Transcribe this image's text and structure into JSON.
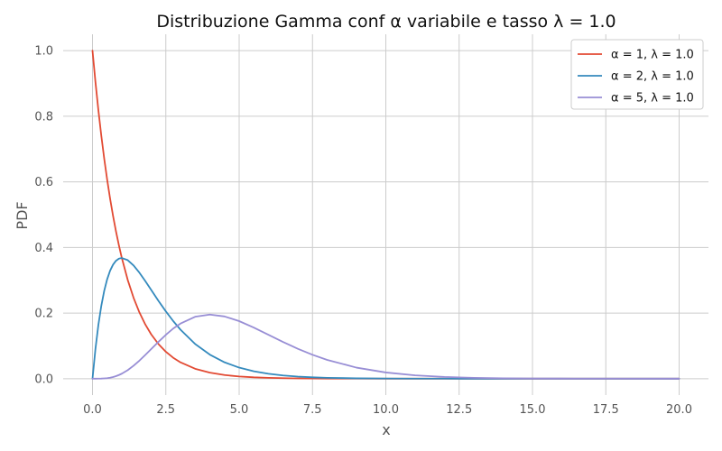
{
  "chart_data": {
    "type": "line",
    "title": "Distribuzione Gamma conf α variabile e tasso λ = 1.0",
    "xlabel": "x",
    "ylabel": "PDF",
    "xlim": [
      -1.0,
      21.0
    ],
    "ylim": [
      -0.05,
      1.05
    ],
    "x_ticks": [
      0.0,
      2.5,
      5.0,
      7.5,
      10.0,
      12.5,
      15.0,
      17.5,
      20.0
    ],
    "x_tick_labels": [
      "0.0",
      "2.5",
      "5.0",
      "7.5",
      "10.0",
      "12.5",
      "15.0",
      "17.5",
      "20.0"
    ],
    "y_ticks": [
      0.0,
      0.2,
      0.4,
      0.6,
      0.8,
      1.0
    ],
    "y_tick_labels": [
      "0.0",
      "0.2",
      "0.4",
      "0.6",
      "0.8",
      "1.0"
    ],
    "grid": true,
    "legend_position": "top-right",
    "x": [
      0,
      0.1,
      0.2,
      0.3,
      0.4,
      0.5,
      0.6,
      0.7,
      0.8,
      0.9,
      1.0,
      1.2,
      1.4,
      1.6,
      1.8,
      2.0,
      2.25,
      2.5,
      2.75,
      3.0,
      3.5,
      4.0,
      4.5,
      5.0,
      5.5,
      6.0,
      6.5,
      7.0,
      7.5,
      8.0,
      9.0,
      10.0,
      11.0,
      12.0,
      13.0,
      14.0,
      15.0,
      16.0,
      17.0,
      18.0,
      19.0,
      20.0
    ],
    "series": [
      {
        "name": "α = 1,  λ = 1.0",
        "color": "#E24A33",
        "values": [
          1.0,
          0.9048,
          0.8187,
          0.7408,
          0.6703,
          0.6065,
          0.5488,
          0.4966,
          0.4493,
          0.4066,
          0.3679,
          0.3012,
          0.2466,
          0.2019,
          0.1653,
          0.1353,
          0.1054,
          0.0821,
          0.0639,
          0.0498,
          0.0302,
          0.0183,
          0.0111,
          0.0067,
          0.0041,
          0.0025,
          0.0015,
          0.0009,
          0.0006,
          0.0003,
          0.0001,
          0.0,
          0.0,
          0.0,
          0.0,
          0.0,
          0.0,
          0.0,
          0.0,
          0.0,
          0.0,
          0.0
        ]
      },
      {
        "name": "α = 2,  λ = 1.0",
        "color": "#348ABD",
        "values": [
          0.0,
          0.0905,
          0.1637,
          0.2222,
          0.2681,
          0.3033,
          0.3293,
          0.3476,
          0.3595,
          0.3659,
          0.3679,
          0.3614,
          0.3452,
          0.323,
          0.2975,
          0.2707,
          0.2371,
          0.2052,
          0.1758,
          0.1494,
          0.1057,
          0.0733,
          0.05,
          0.0337,
          0.0225,
          0.0149,
          0.0098,
          0.0064,
          0.0042,
          0.0027,
          0.0011,
          0.0005,
          0.0002,
          0.0001,
          0.0,
          0.0,
          0.0,
          0.0,
          0.0,
          0.0,
          0.0,
          0.0
        ]
      },
      {
        "name": "α = 5,  λ = 1.0",
        "color": "#988ED5",
        "values": [
          0.0,
          0.0,
          0.0001,
          0.0003,
          0.0009,
          0.0016,
          0.003,
          0.005,
          0.0077,
          0.0112,
          0.0153,
          0.026,
          0.0395,
          0.0551,
          0.0723,
          0.0902,
          0.1125,
          0.1336,
          0.1528,
          0.168,
          0.1888,
          0.1954,
          0.1898,
          0.1755,
          0.1558,
          0.1339,
          0.1118,
          0.0912,
          0.0729,
          0.0573,
          0.0337,
          0.0189,
          0.0102,
          0.0053,
          0.0027,
          0.0013,
          0.0006,
          0.0003,
          0.0001,
          0.0001,
          0.0,
          0.0
        ]
      }
    ]
  }
}
